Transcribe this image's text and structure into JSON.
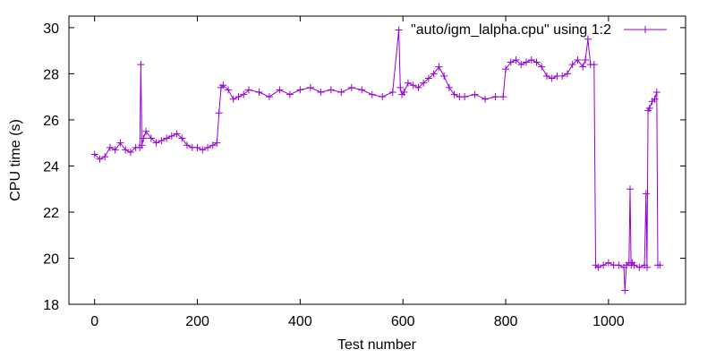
{
  "chart_data": {
    "type": "line",
    "title": "",
    "xlabel": "Test number",
    "ylabel": "CPU time (s)",
    "xlim": [
      -50,
      1150
    ],
    "ylim": [
      18,
      30.5
    ],
    "x_ticks": [
      0,
      200,
      400,
      600,
      800,
      1000
    ],
    "y_ticks": [
      18,
      20,
      22,
      24,
      26,
      28,
      30
    ],
    "grid": false,
    "legend_position": "top-right",
    "line_color": "#9400d3",
    "marker": "plus",
    "series": [
      {
        "name": "\"auto/igm_lalpha.cpu\" using 1:2",
        "x": [
          0,
          10,
          20,
          30,
          40,
          50,
          60,
          70,
          80,
          88,
          90,
          92,
          95,
          100,
          110,
          120,
          130,
          140,
          150,
          160,
          170,
          180,
          190,
          200,
          210,
          220,
          230,
          238,
          242,
          246,
          250,
          260,
          270,
          280,
          290,
          300,
          320,
          340,
          360,
          380,
          400,
          420,
          440,
          460,
          480,
          500,
          520,
          540,
          560,
          580,
          592,
          595,
          598,
          602,
          610,
          620,
          630,
          640,
          650,
          660,
          670,
          680,
          690,
          700,
          710,
          720,
          740,
          760,
          780,
          795,
          800,
          810,
          820,
          830,
          840,
          850,
          860,
          870,
          880,
          890,
          900,
          910,
          920,
          930,
          940,
          950,
          955,
          960,
          965,
          972,
          975,
          980,
          990,
          1000,
          1010,
          1020,
          1030,
          1032,
          1035,
          1040,
          1042,
          1044,
          1046,
          1050,
          1060,
          1070,
          1073,
          1075,
          1077,
          1080,
          1085,
          1090,
          1094,
          1096,
          1100
        ],
        "y": [
          24.5,
          24.3,
          24.4,
          24.8,
          24.7,
          25.0,
          24.7,
          24.6,
          24.8,
          24.8,
          28.4,
          24.9,
          25.2,
          25.5,
          25.2,
          25.0,
          25.1,
          25.2,
          25.3,
          25.4,
          25.2,
          24.9,
          24.8,
          24.8,
          24.7,
          24.8,
          24.9,
          25.0,
          26.3,
          27.4,
          27.5,
          27.3,
          26.9,
          27.0,
          27.1,
          27.3,
          27.2,
          27.0,
          27.3,
          27.1,
          27.3,
          27.4,
          27.2,
          27.3,
          27.2,
          27.4,
          27.3,
          27.1,
          27.0,
          27.2,
          29.9,
          27.4,
          27.1,
          27.2,
          27.6,
          27.5,
          27.4,
          27.6,
          27.8,
          28.0,
          28.3,
          27.9,
          27.4,
          27.1,
          27.0,
          27.0,
          27.1,
          26.9,
          27.0,
          27.0,
          28.2,
          28.5,
          28.6,
          28.4,
          28.5,
          28.6,
          28.5,
          28.3,
          27.9,
          27.8,
          27.9,
          27.9,
          28.0,
          28.4,
          28.6,
          28.3,
          28.6,
          29.5,
          28.4,
          28.4,
          19.7,
          19.6,
          19.7,
          19.8,
          19.7,
          19.7,
          19.6,
          18.6,
          19.7,
          19.8,
          23.0,
          19.7,
          19.8,
          19.7,
          19.6,
          19.7,
          22.8,
          19.6,
          26.4,
          26.5,
          26.8,
          26.9,
          27.2,
          19.7,
          19.7
        ]
      }
    ]
  }
}
